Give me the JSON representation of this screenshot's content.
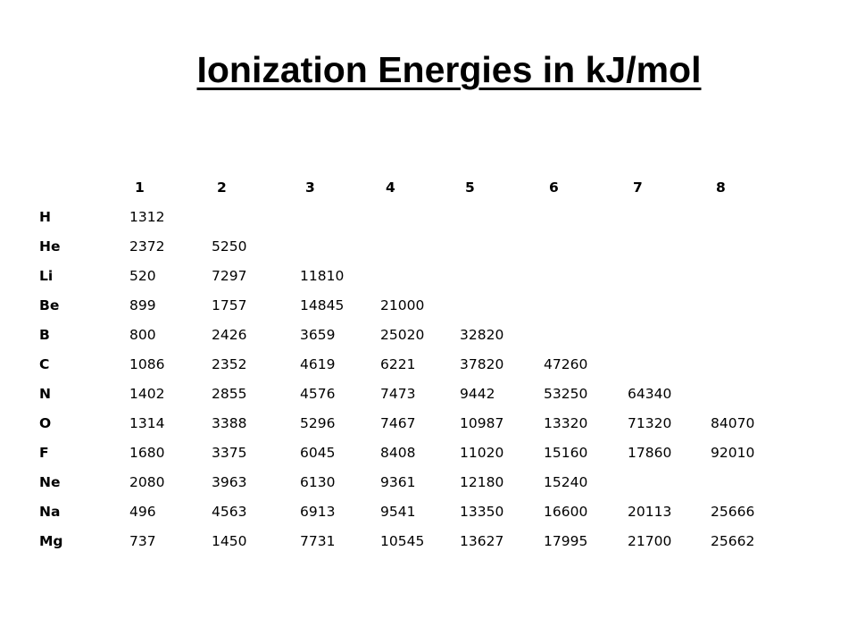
{
  "title": "Ionization Energies in kJ/mol",
  "table": {
    "columns": [
      "1",
      "2",
      "3",
      "4",
      "5",
      "6",
      "7",
      "8"
    ],
    "rows": [
      {
        "element": "H",
        "values": [
          "1312",
          "",
          "",
          "",
          "",
          "",
          "",
          ""
        ]
      },
      {
        "element": "He",
        "values": [
          "2372",
          "5250",
          "",
          "",
          "",
          "",
          "",
          ""
        ]
      },
      {
        "element": "Li",
        "values": [
          "520",
          "7297",
          "11810",
          "",
          "",
          "",
          "",
          ""
        ]
      },
      {
        "element": "Be",
        "values": [
          "899",
          "1757",
          "14845",
          "21000",
          "",
          "",
          "",
          ""
        ]
      },
      {
        "element": "B",
        "values": [
          "800",
          "2426",
          "3659",
          "25020",
          "32820",
          "",
          "",
          ""
        ]
      },
      {
        "element": "C",
        "values": [
          "1086",
          "2352",
          "4619",
          "6221",
          "37820",
          "47260",
          "",
          ""
        ]
      },
      {
        "element": "N",
        "values": [
          "1402",
          "2855",
          "4576",
          "7473",
          "9442",
          "53250",
          "64340",
          ""
        ]
      },
      {
        "element": "O",
        "values": [
          "1314",
          "3388",
          "5296",
          "7467",
          "10987",
          "13320",
          "71320",
          "84070"
        ]
      },
      {
        "element": "F",
        "values": [
          "1680",
          "3375",
          "6045",
          "8408",
          "11020",
          "15160",
          "17860",
          "92010"
        ]
      },
      {
        "element": "Ne",
        "values": [
          "2080",
          "3963",
          "6130",
          "9361",
          "12180",
          "15240",
          "",
          ""
        ]
      },
      {
        "element": "Na",
        "values": [
          "496",
          "4563",
          "6913",
          "9541",
          "13350",
          "16600",
          "20113",
          "25666"
        ]
      },
      {
        "element": "Mg",
        "values": [
          "737",
          "1450",
          "7731",
          "10545",
          "13627",
          "17995",
          "21700",
          "25662"
        ]
      }
    ]
  }
}
